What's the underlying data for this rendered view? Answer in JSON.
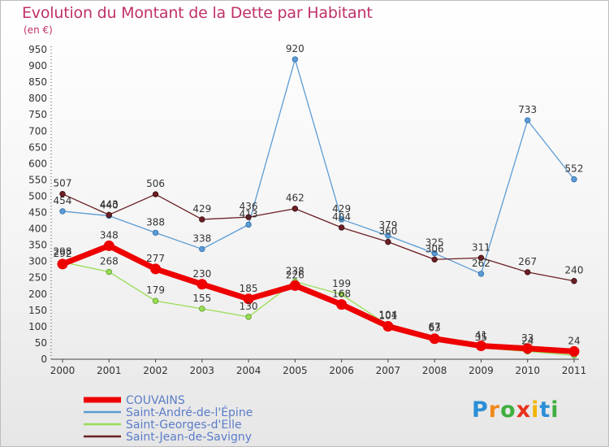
{
  "chart_data": {
    "type": "line",
    "title": "Evolution du Montant de la Dette par Habitant",
    "subtitle": "(en €)",
    "x": [
      "2000",
      "2001",
      "2002",
      "2003",
      "2004",
      "2005",
      "2006",
      "2007",
      "2008",
      "2009",
      "2010",
      "2011"
    ],
    "ylim": [
      0,
      950
    ],
    "yticks": [
      0,
      50,
      100,
      150,
      200,
      250,
      300,
      350,
      400,
      450,
      500,
      550,
      600,
      650,
      700,
      750,
      800,
      850,
      900,
      950
    ],
    "grid": false,
    "legend_position": "bottom-left",
    "series": [
      {
        "name": "COUVAINS",
        "color": "#ee0000",
        "values": [
          292,
          348,
          277,
          230,
          185,
          226,
          168,
          101,
          63,
          41,
          33,
          24
        ],
        "labels": [
          "292",
          "348",
          "277",
          "230",
          "185",
          "226",
          "168",
          "101",
          "63",
          "41",
          "33",
          "24"
        ]
      },
      {
        "name": "Saint-André-de-l'Épine",
        "color": "#5b9bd5",
        "values": [
          454,
          440,
          388,
          338,
          413,
          920,
          429,
          379,
          325,
          262,
          733,
          552
        ],
        "labels": [
          "454",
          "440",
          "388",
          "338",
          "413",
          "920",
          "429",
          "379",
          "325",
          "262",
          "733",
          "552"
        ]
      },
      {
        "name": "Saint-Georges-d'Elle",
        "color": "#99dd55",
        "values": [
          298,
          268,
          179,
          155,
          130,
          238,
          199,
          104,
          67,
          35,
          24,
          12
        ],
        "labels": [
          "298",
          "268",
          "179",
          "155",
          "130",
          "238",
          "199",
          "104",
          "67",
          "35",
          "24",
          ""
        ]
      },
      {
        "name": "Saint-Jean-de-Savigny",
        "color": "#6b1f24",
        "values": [
          507,
          443,
          506,
          429,
          436,
          462,
          404,
          360,
          306,
          311,
          267,
          240
        ],
        "labels": [
          "507",
          "443",
          "506",
          "429",
          "436",
          "462",
          "404",
          "360",
          "306",
          "311",
          "267",
          "240"
        ]
      }
    ]
  },
  "logo": {
    "text": "Proxiti",
    "letters": [
      "P",
      "r",
      "o",
      "x",
      "i",
      "t",
      "i"
    ]
  }
}
